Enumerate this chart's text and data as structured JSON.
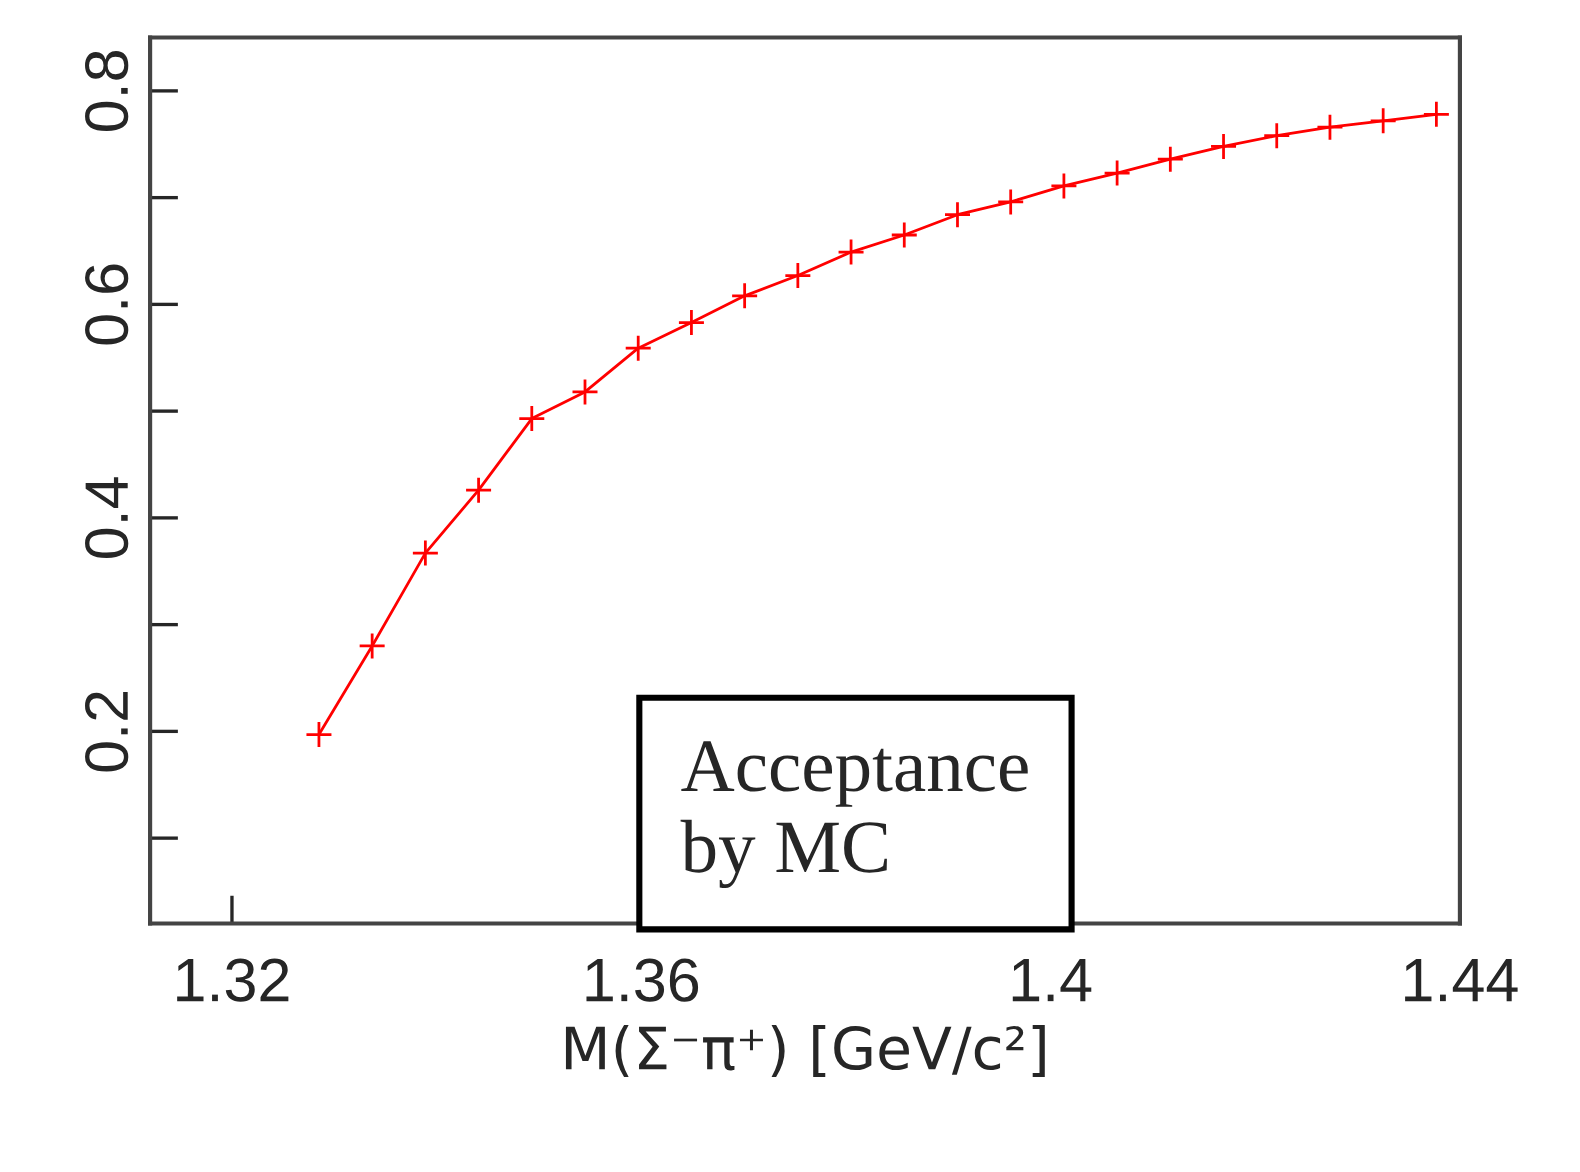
{
  "chart_data": {
    "type": "line",
    "xlabel": "M(Σ⁻π⁺) [GeV/c²]",
    "x": [
      1.3285,
      1.3337,
      1.3389,
      1.3441,
      1.3493,
      1.3545,
      1.3597,
      1.3649,
      1.3701,
      1.3753,
      1.3805,
      1.3857,
      1.3909,
      1.3961,
      1.4013,
      1.4065,
      1.4117,
      1.4169,
      1.4221,
      1.4273,
      1.4325,
      1.4377
    ],
    "series": [
      {
        "color": "#ff0000",
        "values": [
          0.197,
          0.28,
          0.367,
          0.426,
          0.493,
          0.518,
          0.559,
          0.583,
          0.608,
          0.627,
          0.649,
          0.665,
          0.684,
          0.696,
          0.711,
          0.723,
          0.736,
          0.748,
          0.758,
          0.766,
          0.772,
          0.778
        ]
      }
    ],
    "marker": "cross",
    "line_style": "solid",
    "xlim": [
      1.312,
      1.44
    ],
    "xticks": [
      1.32,
      1.36,
      {
        "value": 1.4,
        "label": "1.4"
      },
      1.44
    ],
    "ylim": [
      0.02,
      0.85
    ],
    "yticks": [
      {
        "value": 0.1,
        "label": null
      },
      0.2,
      {
        "value": 0.3,
        "label": null
      },
      0.4,
      {
        "value": 0.5,
        "label": null
      },
      0.6,
      {
        "value": 0.7,
        "label": null
      },
      0.8
    ],
    "grid": false,
    "legend": false,
    "annotations": [
      "Acceptance\nby MC"
    ]
  }
}
